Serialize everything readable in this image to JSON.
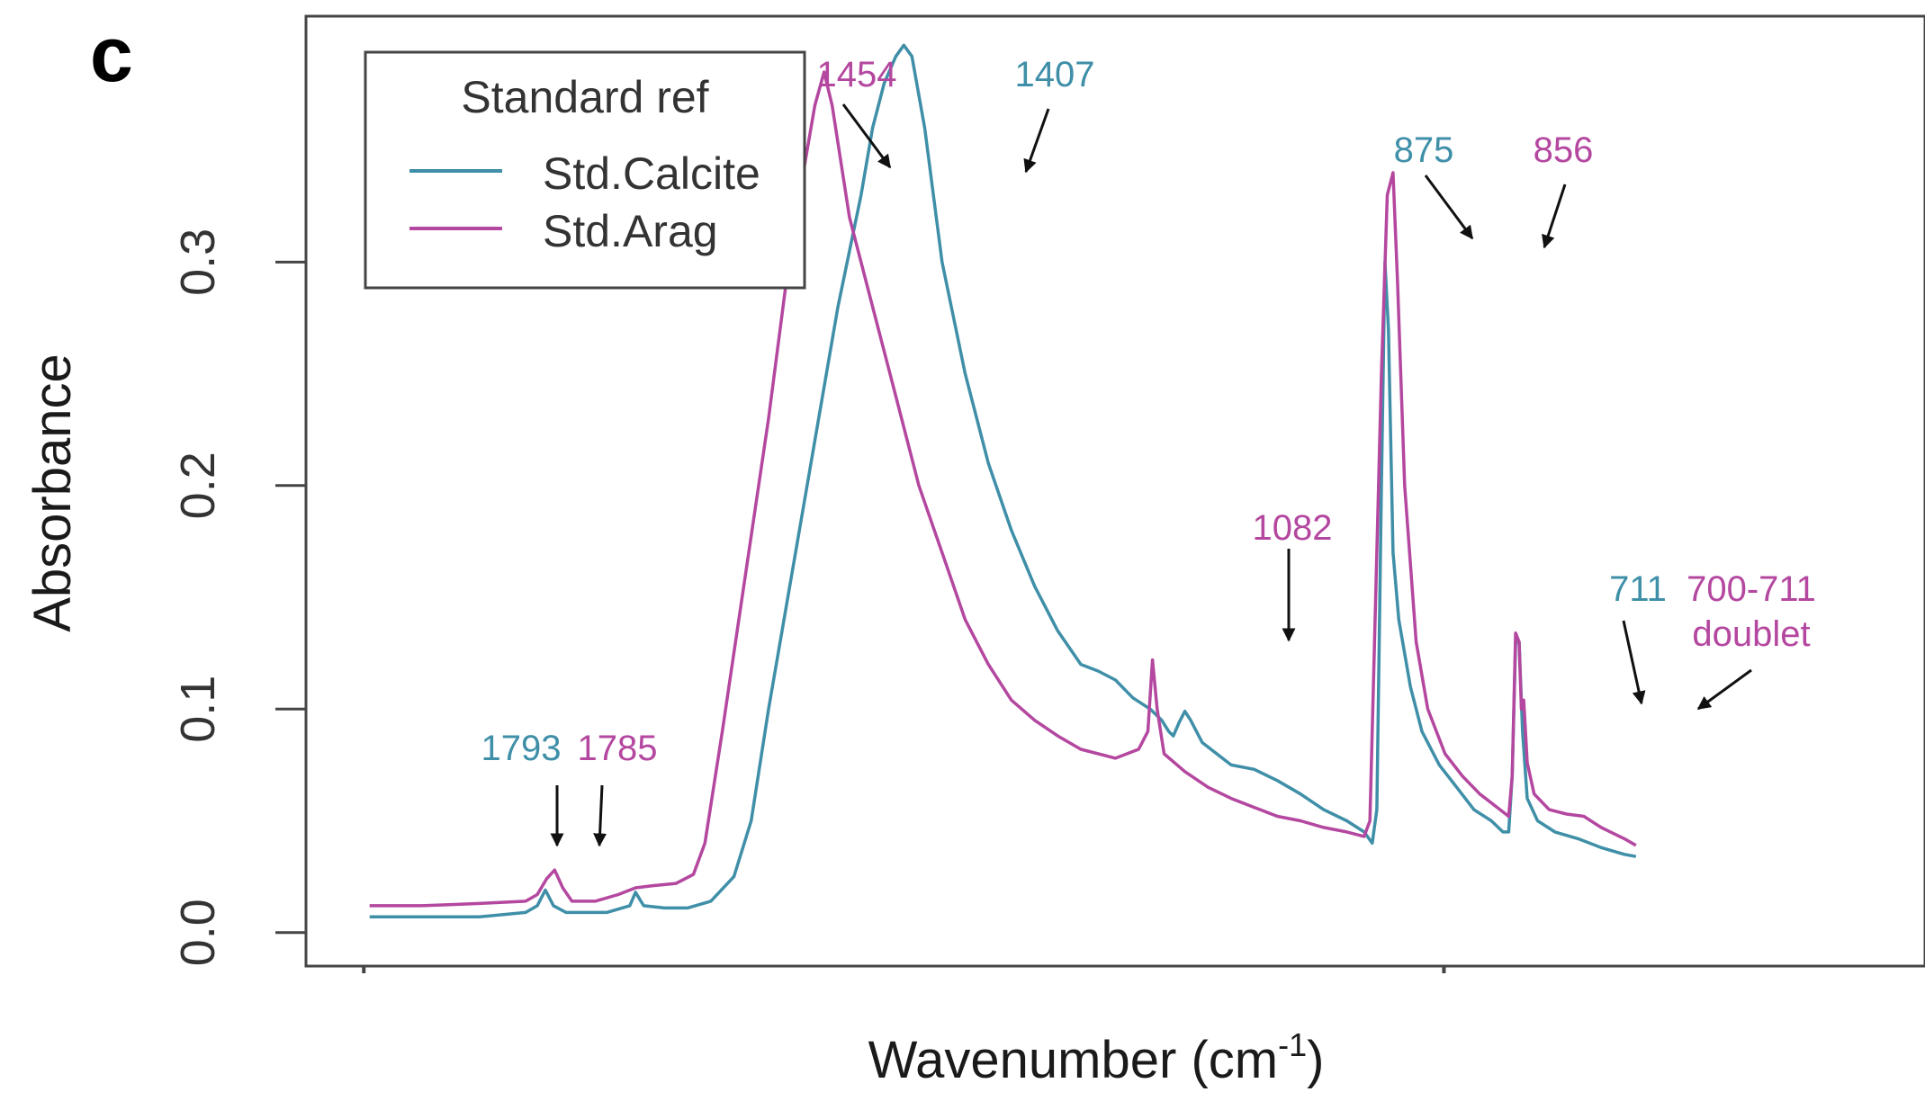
{
  "panel_label": "c",
  "chart_data": {
    "type": "line",
    "xlabel": "Wavenumber (cm",
    "xlabel_sup": "-1",
    "xlabel_close": ")",
    "ylabel": "Absorbance",
    "xlim": [
      2000,
      600
    ],
    "ylim": [
      -0.015,
      0.41
    ],
    "y_ticks": [
      0.0,
      0.1,
      0.2,
      0.3
    ],
    "y_tick_labels": [
      "0.0",
      "0.1",
      "0.2",
      "0.3"
    ],
    "x_tick_marks": [
      1950,
      1016
    ],
    "legend": {
      "title": "Standard ref",
      "position": "top-left"
    },
    "series": [
      {
        "name": "Std.Calcite",
        "color": "#3f8fa8",
        "points": [
          [
            1945,
            0.007
          ],
          [
            1900,
            0.007
          ],
          [
            1850,
            0.007
          ],
          [
            1810,
            0.009
          ],
          [
            1800,
            0.012
          ],
          [
            1793,
            0.019
          ],
          [
            1786,
            0.012
          ],
          [
            1775,
            0.009
          ],
          [
            1760,
            0.009
          ],
          [
            1740,
            0.009
          ],
          [
            1720,
            0.012
          ],
          [
            1715,
            0.018
          ],
          [
            1708,
            0.012
          ],
          [
            1690,
            0.011
          ],
          [
            1670,
            0.011
          ],
          [
            1650,
            0.014
          ],
          [
            1630,
            0.025
          ],
          [
            1615,
            0.05
          ],
          [
            1600,
            0.1
          ],
          [
            1580,
            0.16
          ],
          [
            1560,
            0.22
          ],
          [
            1540,
            0.28
          ],
          [
            1520,
            0.33
          ],
          [
            1510,
            0.36
          ],
          [
            1500,
            0.38
          ],
          [
            1490,
            0.392
          ],
          [
            1483,
            0.397
          ],
          [
            1476,
            0.392
          ],
          [
            1465,
            0.36
          ],
          [
            1450,
            0.3
          ],
          [
            1430,
            0.25
          ],
          [
            1410,
            0.21
          ],
          [
            1390,
            0.18
          ],
          [
            1370,
            0.155
          ],
          [
            1350,
            0.135
          ],
          [
            1330,
            0.12
          ],
          [
            1315,
            0.117
          ],
          [
            1300,
            0.113
          ],
          [
            1285,
            0.105
          ],
          [
            1270,
            0.1
          ],
          [
            1260,
            0.095
          ],
          [
            1254,
            0.09
          ],
          [
            1250,
            0.088
          ],
          [
            1245,
            0.094
          ],
          [
            1240,
            0.099
          ],
          [
            1235,
            0.095
          ],
          [
            1225,
            0.085
          ],
          [
            1200,
            0.075
          ],
          [
            1180,
            0.073
          ],
          [
            1160,
            0.068
          ],
          [
            1140,
            0.062
          ],
          [
            1120,
            0.055
          ],
          [
            1100,
            0.05
          ],
          [
            1085,
            0.045
          ],
          [
            1078,
            0.04
          ],
          [
            1074,
            0.055
          ],
          [
            1070,
            0.2
          ],
          [
            1067,
            0.3
          ],
          [
            1064,
            0.27
          ],
          [
            1060,
            0.17
          ],
          [
            1055,
            0.14
          ],
          [
            1045,
            0.11
          ],
          [
            1035,
            0.09
          ],
          [
            1020,
            0.075
          ],
          [
            1005,
            0.065
          ],
          [
            990,
            0.055
          ],
          [
            975,
            0.05
          ],
          [
            965,
            0.045
          ],
          [
            960,
            0.045
          ],
          [
            957,
            0.07
          ],
          [
            954,
            0.13
          ],
          [
            951,
            0.13
          ],
          [
            948,
            0.09
          ],
          [
            944,
            0.06
          ],
          [
            935,
            0.05
          ],
          [
            920,
            0.045
          ],
          [
            900,
            0.042
          ],
          [
            880,
            0.038
          ],
          [
            860,
            0.035
          ],
          [
            850,
            0.034
          ]
        ]
      },
      {
        "name": "Std.Arag",
        "color": "#b4479f",
        "points": [
          [
            1945,
            0.012
          ],
          [
            1900,
            0.012
          ],
          [
            1850,
            0.013
          ],
          [
            1810,
            0.014
          ],
          [
            1800,
            0.017
          ],
          [
            1792,
            0.024
          ],
          [
            1785,
            0.028
          ],
          [
            1778,
            0.02
          ],
          [
            1770,
            0.014
          ],
          [
            1750,
            0.014
          ],
          [
            1730,
            0.017
          ],
          [
            1715,
            0.02
          ],
          [
            1700,
            0.021
          ],
          [
            1680,
            0.022
          ],
          [
            1665,
            0.026
          ],
          [
            1655,
            0.04
          ],
          [
            1640,
            0.09
          ],
          [
            1620,
            0.16
          ],
          [
            1600,
            0.23
          ],
          [
            1585,
            0.29
          ],
          [
            1570,
            0.34
          ],
          [
            1560,
            0.37
          ],
          [
            1552,
            0.385
          ],
          [
            1545,
            0.37
          ],
          [
            1530,
            0.32
          ],
          [
            1510,
            0.28
          ],
          [
            1490,
            0.24
          ],
          [
            1470,
            0.2
          ],
          [
            1450,
            0.17
          ],
          [
            1430,
            0.14
          ],
          [
            1410,
            0.12
          ],
          [
            1390,
            0.104
          ],
          [
            1370,
            0.095
          ],
          [
            1350,
            0.088
          ],
          [
            1330,
            0.082
          ],
          [
            1300,
            0.078
          ],
          [
            1280,
            0.082
          ],
          [
            1272,
            0.09
          ],
          [
            1268,
            0.122
          ],
          [
            1264,
            0.1
          ],
          [
            1258,
            0.08
          ],
          [
            1240,
            0.072
          ],
          [
            1220,
            0.065
          ],
          [
            1200,
            0.06
          ],
          [
            1180,
            0.056
          ],
          [
            1160,
            0.052
          ],
          [
            1140,
            0.05
          ],
          [
            1120,
            0.047
          ],
          [
            1100,
            0.045
          ],
          [
            1085,
            0.043
          ],
          [
            1080,
            0.05
          ],
          [
            1075,
            0.15
          ],
          [
            1070,
            0.25
          ],
          [
            1065,
            0.33
          ],
          [
            1060,
            0.34
          ],
          [
            1056,
            0.29
          ],
          [
            1050,
            0.2
          ],
          [
            1040,
            0.13
          ],
          [
            1030,
            0.1
          ],
          [
            1015,
            0.08
          ],
          [
            1000,
            0.07
          ],
          [
            985,
            0.062
          ],
          [
            970,
            0.056
          ],
          [
            960,
            0.052
          ],
          [
            957,
            0.07
          ],
          [
            954,
            0.134
          ],
          [
            951,
            0.13
          ],
          [
            949,
            0.1
          ],
          [
            947,
            0.104
          ],
          [
            944,
            0.076
          ],
          [
            938,
            0.062
          ],
          [
            925,
            0.055
          ],
          [
            910,
            0.053
          ],
          [
            895,
            0.052
          ],
          [
            880,
            0.047
          ],
          [
            860,
            0.042
          ],
          [
            850,
            0.039
          ]
        ]
      }
    ],
    "annotations": [
      {
        "text": "1793",
        "series": 0
      },
      {
        "text": "1785",
        "series": 1
      },
      {
        "text": "1454",
        "series": 1
      },
      {
        "text": "1407",
        "series": 0
      },
      {
        "text": "1082",
        "series": 1
      },
      {
        "text": "875",
        "series": 0
      },
      {
        "text": "856",
        "series": 1
      },
      {
        "text": "711",
        "series": 0
      },
      {
        "text": "700-711",
        "series": 1
      },
      {
        "text": "doublet",
        "series": 1
      }
    ]
  }
}
